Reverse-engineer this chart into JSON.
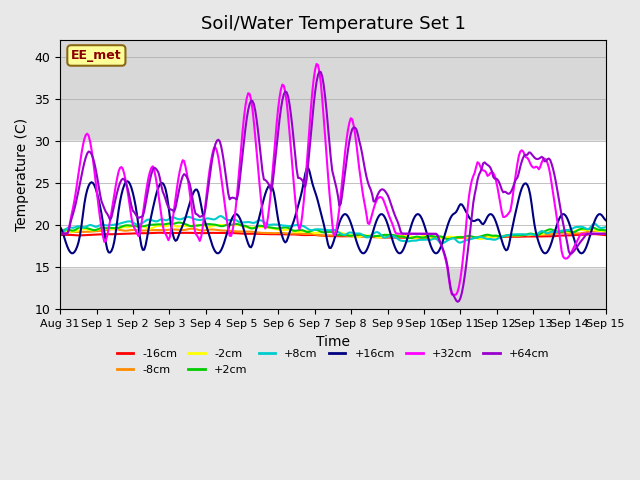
{
  "title": "Soil/Water Temperature Set 1",
  "xlabel": "Time",
  "ylabel": "Temperature (C)",
  "ylim": [
    10,
    42
  ],
  "yticks": [
    10,
    15,
    20,
    25,
    30,
    35,
    40
  ],
  "background_color": "#e8e8e8",
  "plot_bg_color": "#e8e8e8",
  "annotation_text": "EE_met",
  "annotation_bg": "#ffff99",
  "annotation_border": "#8b6914",
  "annotation_text_color": "#8b0000",
  "series": {
    "-16cm": {
      "color": "#ff0000",
      "lw": 1.5
    },
    "-8cm": {
      "color": "#ff8c00",
      "lw": 1.5
    },
    "-2cm": {
      "color": "#ffff00",
      "lw": 1.5
    },
    "+2cm": {
      "color": "#00cc00",
      "lw": 1.5
    },
    "+8cm": {
      "color": "#00cccc",
      "lw": 1.5
    },
    "+16cm": {
      "color": "#000080",
      "lw": 1.5
    },
    "+32cm": {
      "color": "#ff00ff",
      "lw": 1.5
    },
    "+64cm": {
      "color": "#9900cc",
      "lw": 1.5
    }
  },
  "xtick_labels": [
    "Aug 31",
    "Sep 1",
    "Sep 2",
    "Sep 3",
    "Sep 4",
    "Sep 5",
    "Sep 6",
    "Sep 7",
    "Sep 8",
    "Sep 9",
    "Sep 10",
    "Sep 11",
    "Sep 12",
    "Sep 13",
    "Sep 14",
    "Sep 15"
  ],
  "shaded_band": [
    15,
    30
  ]
}
